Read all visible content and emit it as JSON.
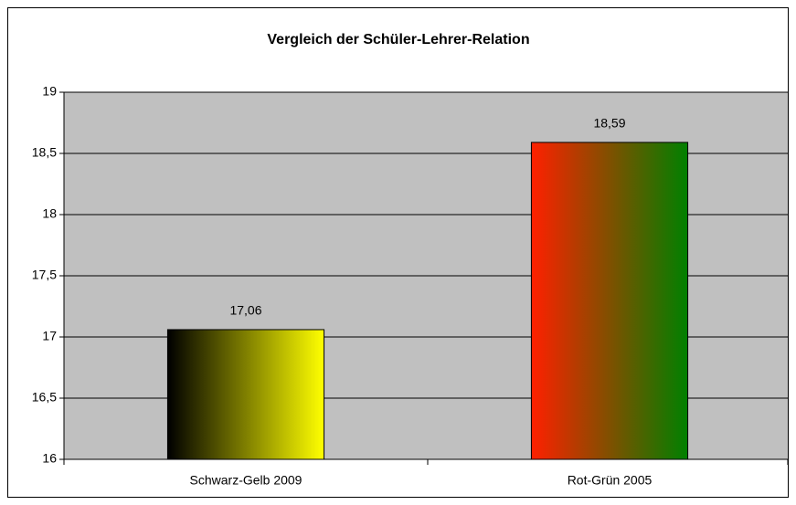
{
  "chart_data": {
    "type": "bar",
    "title": "Vergleich der Schüler-Lehrer-Relation",
    "categories": [
      "Schwarz-Gelb 2009",
      "Rot-Grün 2005"
    ],
    "values": [
      17.06,
      18.59
    ],
    "value_labels": [
      "17,06",
      "18,59"
    ],
    "colors": [
      [
        "#000000",
        "#ffff00"
      ],
      [
        "#ff2000",
        "#008000"
      ]
    ],
    "ylim": [
      16,
      19
    ],
    "yticks": [
      16,
      {
        "value": 16.5,
        "label": "16,5"
      },
      17,
      {
        "value": 17.5,
        "label": "17,5"
      },
      18,
      {
        "value": 18.5,
        "label": "18,5"
      },
      19
    ],
    "grid": true
  }
}
